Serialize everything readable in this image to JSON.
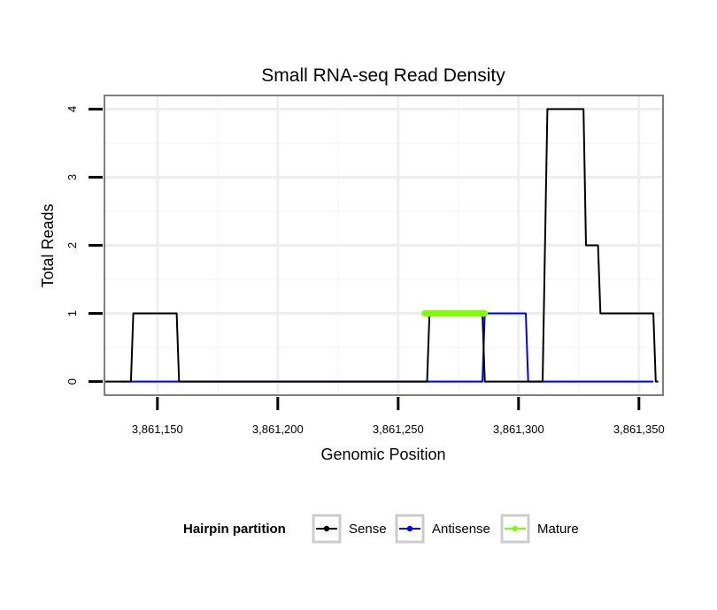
{
  "chart_data": {
    "type": "line",
    "title": "Small RNA-seq Read Density",
    "xlabel": "Genomic Position",
    "ylabel": "Total Reads",
    "xlim": [
      3861128,
      3861360
    ],
    "ylim": [
      -0.2,
      4.2
    ],
    "x_ticks": [
      3861150,
      3861200,
      3861250,
      3861300,
      3861350
    ],
    "x_tick_labels": [
      "3,861,150",
      "3,861,200",
      "3,861,250",
      "3,861,300",
      "3,861,350"
    ],
    "y_ticks": [
      0,
      1,
      2,
      3,
      4
    ],
    "y_tick_labels": [
      "0",
      "1",
      "2",
      "3",
      "4"
    ],
    "grid": true,
    "legend": {
      "title": "Hairpin partition",
      "position": "bottom"
    },
    "series": [
      {
        "name": "Sense",
        "color": "#000000",
        "x": [
          3861128,
          3861139,
          3861140,
          3861158,
          3861159,
          3861262,
          3861263,
          3861285,
          3861286,
          3861310,
          3861312,
          3861327,
          3861328,
          3861333,
          3861334,
          3861356,
          3861357,
          3861358
        ],
        "y": [
          0,
          0,
          1,
          1,
          0,
          0,
          1,
          1,
          0,
          0,
          4,
          4,
          2,
          2,
          1,
          1,
          0,
          0
        ]
      },
      {
        "name": "Antisense",
        "color": "#0000ff",
        "x": [
          3861135,
          3861285,
          3861286,
          3861303,
          3861304,
          3861356
        ],
        "y": [
          0,
          0,
          1,
          1,
          0,
          0
        ]
      },
      {
        "name": "Mature",
        "color": "#7fff00",
        "x": [
          3861261,
          3861286
        ],
        "y": [
          1,
          1
        ]
      }
    ]
  }
}
